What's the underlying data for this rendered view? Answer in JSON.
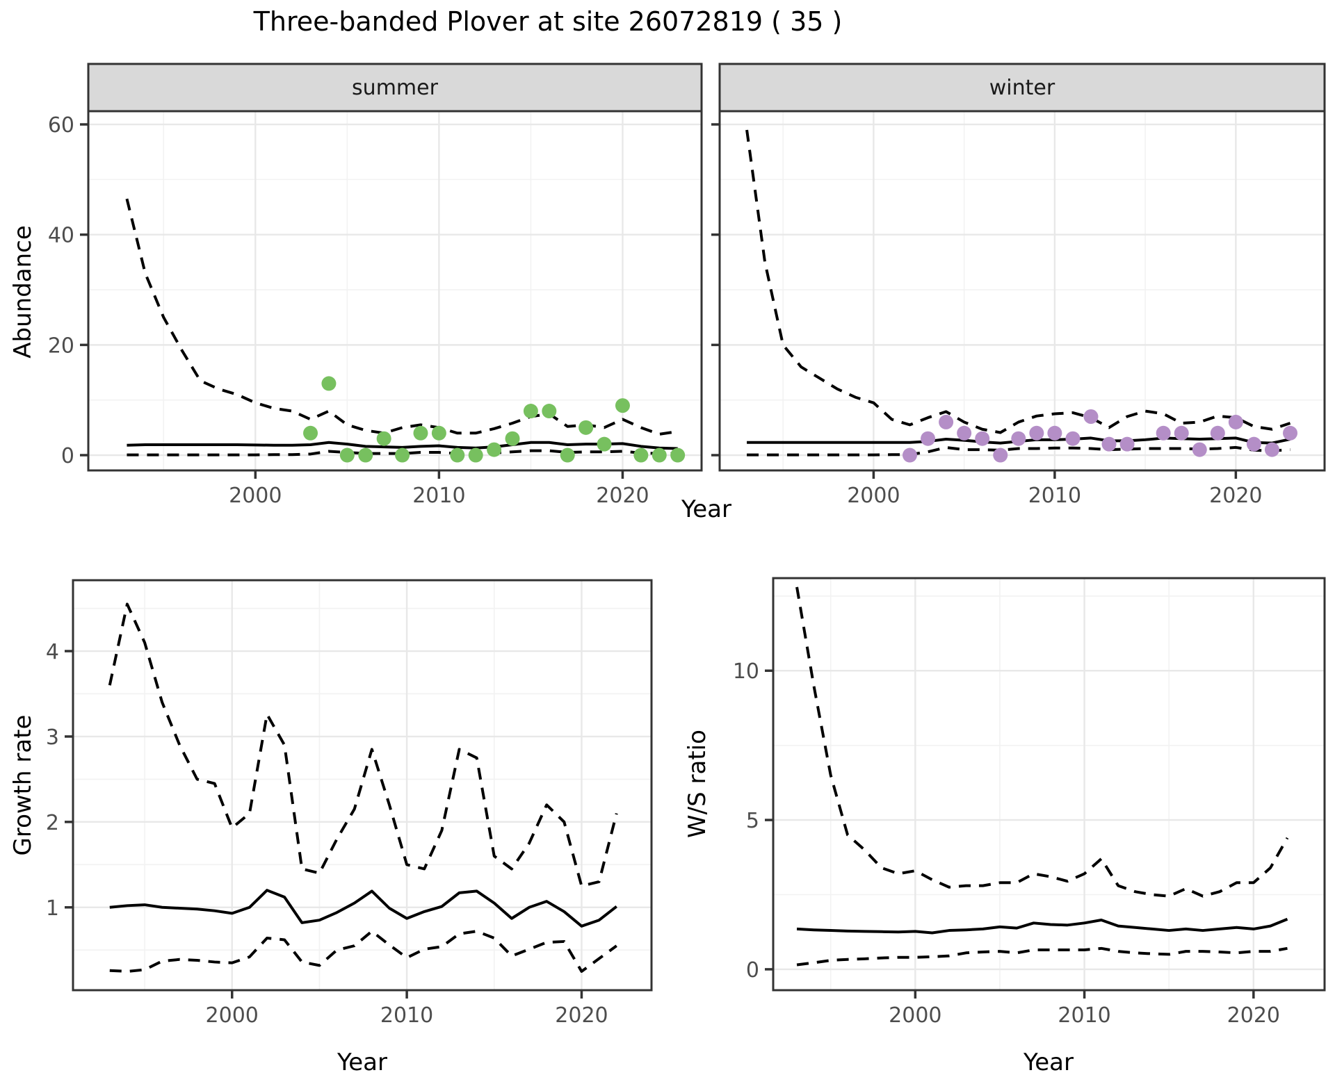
{
  "title": "Three-banded Plover at site 26072819 ( 35 )",
  "facets": [
    {
      "label": "summer"
    },
    {
      "label": "winter"
    }
  ],
  "axes": {
    "year_label": "Year",
    "abundance_label": "Abundance",
    "growth_label": "Growth rate",
    "ws_label": "W/S ratio"
  },
  "colors": {
    "summer_point": "#77C05F",
    "winter_point": "#B48EC7",
    "line": "#000000",
    "grid_major": "#E8E8E8",
    "grid_minor": "#F2F2F2",
    "panel_border": "#333333",
    "strip_fill": "#D9D9D9",
    "tick_text": "#4d4d4d"
  },
  "chart_data": [
    {
      "id": "abundance-summer",
      "type": "line",
      "facet": "summer",
      "xlabel": "Year",
      "ylabel": "Abundance",
      "xlim": [
        1990.9,
        2024.3
      ],
      "ylim": [
        -2.77,
        62.4
      ],
      "x_major": [
        2000,
        2010,
        2020
      ],
      "x_minor": [
        1995,
        2005,
        2015
      ],
      "y_major": [
        0,
        20,
        40,
        60
      ],
      "y_minor": [
        10,
        30,
        50
      ],
      "years_start": 1993,
      "upper_ci": [
        46.5,
        33,
        25,
        19,
        13.5,
        12,
        11,
        9.5,
        8.5,
        8,
        6.5,
        8,
        5.5,
        4.5,
        4,
        5,
        5.5,
        5,
        4,
        4,
        4.8,
        5.8,
        7,
        7.5,
        5.2,
        5.5,
        5,
        6.5,
        5,
        3.8,
        4.3
      ],
      "fit": [
        1.8,
        1.9,
        1.9,
        1.9,
        1.9,
        1.9,
        1.9,
        1.85,
        1.8,
        1.8,
        1.9,
        2.3,
        2.0,
        1.6,
        1.5,
        1.4,
        1.6,
        1.7,
        1.4,
        1.3,
        1.5,
        1.9,
        2.3,
        2.3,
        1.9,
        2.0,
        2.0,
        2.1,
        1.6,
        1.3,
        1.2
      ],
      "lower_ci": [
        0.05,
        0.05,
        0.05,
        0.05,
        0.05,
        0.05,
        0.05,
        0.05,
        0.1,
        0.1,
        0.2,
        0.7,
        0.5,
        0.3,
        0.3,
        0.3,
        0.5,
        0.5,
        0.3,
        0.3,
        0.4,
        0.6,
        0.8,
        0.8,
        0.5,
        0.6,
        0.6,
        0.7,
        0.4,
        0.3,
        0.3
      ],
      "points": [
        [
          2003,
          4
        ],
        [
          2004,
          13
        ],
        [
          2005,
          0
        ],
        [
          2006,
          0
        ],
        [
          2007,
          3
        ],
        [
          2008,
          0
        ],
        [
          2009,
          4
        ],
        [
          2010,
          4
        ],
        [
          2011,
          0
        ],
        [
          2012,
          0
        ],
        [
          2013,
          1
        ],
        [
          2014,
          3
        ],
        [
          2015,
          8
        ],
        [
          2016,
          8
        ],
        [
          2017,
          0
        ],
        [
          2018,
          5
        ],
        [
          2019,
          2
        ],
        [
          2020,
          9
        ],
        [
          2021,
          0
        ],
        [
          2022,
          0
        ],
        [
          2023,
          0
        ]
      ],
      "point_color": "#77C05F"
    },
    {
      "id": "abundance-winter",
      "type": "line",
      "facet": "winter",
      "xlabel": "Year",
      "ylabel": "Abundance",
      "xlim": [
        1991.5,
        2024.9
      ],
      "ylim": [
        -2.77,
        62.4
      ],
      "x_major": [
        2000,
        2010,
        2020
      ],
      "x_minor": [
        1995,
        2005,
        2015
      ],
      "y_major": [
        0,
        20,
        40,
        60
      ],
      "y_minor": [
        10,
        30,
        50
      ],
      "years_start": 1993,
      "upper_ci": [
        59,
        35,
        20,
        16,
        14,
        12,
        10.5,
        9.5,
        6.5,
        5.5,
        6.8,
        7.9,
        6.0,
        4.7,
        4.1,
        6.0,
        7.1,
        7.5,
        7.7,
        6.8,
        5.0,
        7.0,
        8.0,
        7.5,
        5.8,
        6.0,
        7.1,
        6.8,
        5.2,
        4.7,
        5.8
      ],
      "fit": [
        2.3,
        2.3,
        2.3,
        2.3,
        2.3,
        2.3,
        2.3,
        2.3,
        2.3,
        2.3,
        2.5,
        2.9,
        2.7,
        2.4,
        2.2,
        2.5,
        2.8,
        2.8,
        2.9,
        3.1,
        2.6,
        2.6,
        2.8,
        3.1,
        3.0,
        2.9,
        3.0,
        3.1,
        2.3,
        2.2,
        2.9
      ],
      "lower_ci": [
        0.05,
        0.05,
        0.05,
        0.05,
        0.05,
        0.05,
        0.05,
        0.05,
        0.1,
        0.1,
        0.6,
        1.4,
        1.0,
        1.0,
        0.9,
        1.2,
        1.2,
        1.3,
        1.3,
        1.2,
        1.0,
        1.1,
        1.2,
        1.2,
        1.2,
        1.1,
        1.2,
        1.4,
        0.9,
        0.8,
        1.0
      ],
      "points": [
        [
          2002,
          0
        ],
        [
          2003,
          3
        ],
        [
          2004,
          6
        ],
        [
          2005,
          4
        ],
        [
          2006,
          3
        ],
        [
          2007,
          0
        ],
        [
          2008,
          3
        ],
        [
          2009,
          4
        ],
        [
          2010,
          4
        ],
        [
          2011,
          3
        ],
        [
          2012,
          7
        ],
        [
          2013,
          2
        ],
        [
          2014,
          2
        ],
        [
          2016,
          4
        ],
        [
          2017,
          4
        ],
        [
          2018,
          1
        ],
        [
          2019,
          4
        ],
        [
          2020,
          6
        ],
        [
          2021,
          2
        ],
        [
          2022,
          1
        ],
        [
          2023,
          4
        ]
      ],
      "point_color": "#B48EC7"
    },
    {
      "id": "growth-rate",
      "type": "line",
      "xlabel": "Year",
      "ylabel": "Growth rate",
      "xlim": [
        1990.9,
        2024.0
      ],
      "ylim": [
        0.03,
        4.83
      ],
      "x_major": [
        2000,
        2010,
        2020
      ],
      "x_minor": [
        1995,
        2005,
        2015
      ],
      "y_major": [
        1,
        2,
        3,
        4
      ],
      "y_minor": [
        0.5,
        1.5,
        2.5,
        3.5,
        4.5
      ],
      "years_start": 1993,
      "upper_ci": [
        3.6,
        4.55,
        4.1,
        3.4,
        2.9,
        2.5,
        2.45,
        1.93,
        2.1,
        3.26,
        2.9,
        1.45,
        1.4,
        1.8,
        2.15,
        2.85,
        2.2,
        1.5,
        1.45,
        1.9,
        2.85,
        2.75,
        1.6,
        1.45,
        1.75,
        2.2,
        2.0,
        1.25,
        1.3,
        2.1
      ],
      "fit": [
        1.0,
        1.02,
        1.03,
        1.0,
        0.99,
        0.98,
        0.96,
        0.93,
        1.0,
        1.2,
        1.12,
        0.82,
        0.85,
        0.94,
        1.05,
        1.19,
        0.99,
        0.87,
        0.95,
        1.01,
        1.17,
        1.19,
        1.05,
        0.87,
        1.0,
        1.07,
        0.95,
        0.78,
        0.85,
        1.01
      ],
      "lower_ci": [
        0.26,
        0.25,
        0.27,
        0.37,
        0.39,
        0.38,
        0.36,
        0.35,
        0.42,
        0.64,
        0.62,
        0.36,
        0.32,
        0.5,
        0.55,
        0.72,
        0.56,
        0.41,
        0.51,
        0.54,
        0.69,
        0.72,
        0.64,
        0.43,
        0.51,
        0.59,
        0.6,
        0.25,
        0.4,
        0.55
      ],
      "points": [],
      "point_color": "#000000"
    },
    {
      "id": "ws-ratio",
      "type": "line",
      "xlabel": "Year",
      "ylabel": "W/S ratio",
      "xlim": [
        1991.6,
        2024.2
      ],
      "ylim": [
        -0.7,
        13.1
      ],
      "x_major": [
        2000,
        2010,
        2020
      ],
      "x_minor": [
        1995,
        2005,
        2015
      ],
      "y_major": [
        0,
        5,
        10
      ],
      "y_minor": [
        2.5,
        7.5,
        12.5
      ],
      "years_start": 1993,
      "upper_ci": [
        12.8,
        9.5,
        6.5,
        4.5,
        4.0,
        3.4,
        3.2,
        3.3,
        3.0,
        2.75,
        2.8,
        2.8,
        2.9,
        2.9,
        3.2,
        3.1,
        2.95,
        3.2,
        3.7,
        2.8,
        2.6,
        2.5,
        2.45,
        2.7,
        2.45,
        2.6,
        2.9,
        2.9,
        3.4,
        4.4
      ],
      "fit": [
        1.35,
        1.32,
        1.3,
        1.28,
        1.27,
        1.26,
        1.25,
        1.27,
        1.22,
        1.3,
        1.32,
        1.35,
        1.42,
        1.38,
        1.55,
        1.5,
        1.48,
        1.55,
        1.65,
        1.45,
        1.4,
        1.35,
        1.3,
        1.35,
        1.3,
        1.35,
        1.4,
        1.35,
        1.45,
        1.68
      ],
      "lower_ci": [
        0.15,
        0.22,
        0.3,
        0.33,
        0.35,
        0.38,
        0.4,
        0.4,
        0.42,
        0.45,
        0.55,
        0.58,
        0.6,
        0.55,
        0.65,
        0.65,
        0.65,
        0.65,
        0.7,
        0.6,
        0.55,
        0.52,
        0.5,
        0.6,
        0.6,
        0.58,
        0.55,
        0.6,
        0.6,
        0.7
      ],
      "points": [],
      "point_color": "#000000"
    }
  ]
}
